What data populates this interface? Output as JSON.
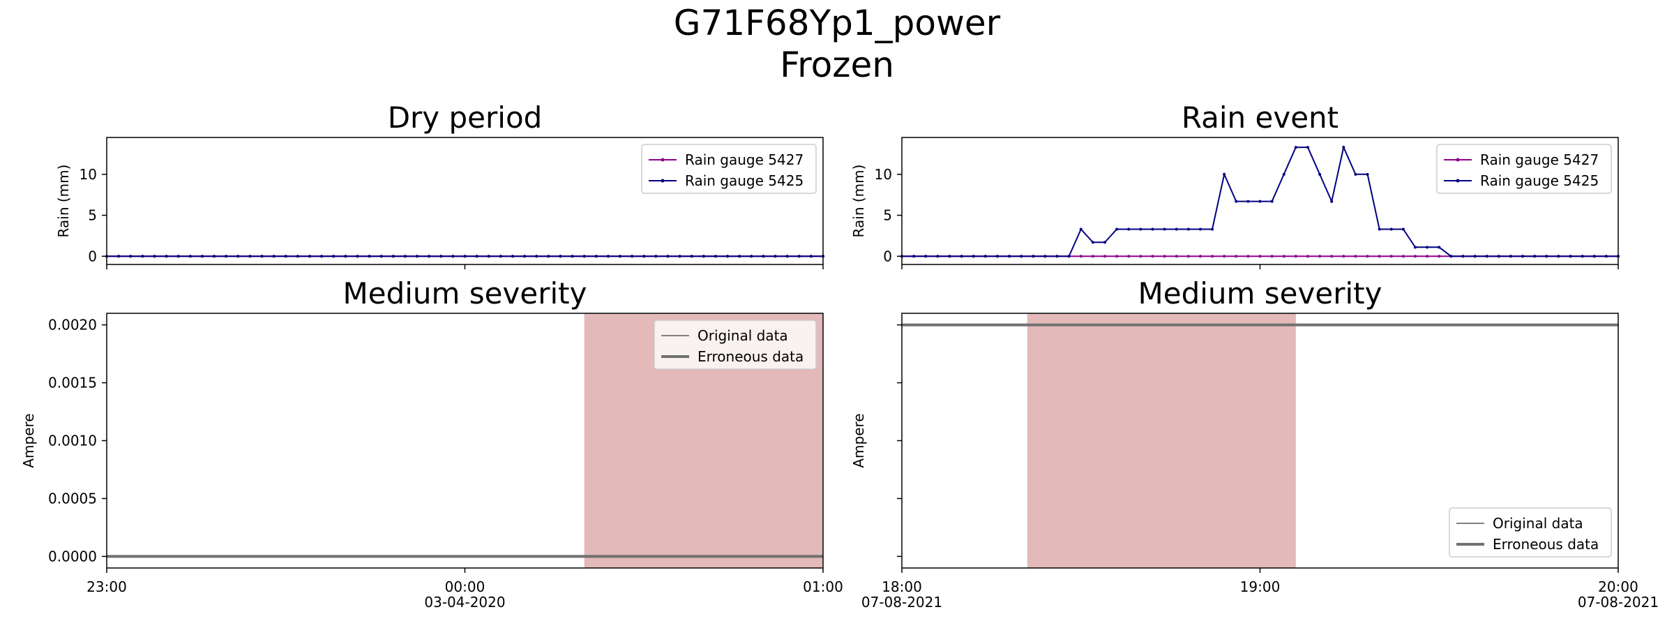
{
  "figure": {
    "title_line1": "G71F68Yp1_power",
    "title_line2": "Frozen"
  },
  "colors": {
    "gauge_5427": "#8b008b",
    "gauge_5425": "#000080",
    "original": "#808080",
    "erroneous": "#707070",
    "severity_span": "#e3b9ba"
  },
  "chart_data": [
    {
      "type": "line",
      "title": "Dry period",
      "ylabel": "Rain (mm)",
      "xlim": [
        "2020-04-02 23:00",
        "2020-04-03 01:00"
      ],
      "ylim": [
        -1,
        14.5
      ],
      "yticks": [
        0,
        5,
        10
      ],
      "x_tick_labels": [
        "23:00",
        "00:00\n03-04-2020",
        "01:00"
      ],
      "step_minutes": 2,
      "legend": "top-right",
      "grid": false,
      "series": [
        {
          "name": "Rain gauge 5427",
          "values_all": 0
        },
        {
          "name": "Rain gauge 5425",
          "values_all": 0
        }
      ]
    },
    {
      "type": "line",
      "title": "Rain event",
      "ylabel": "Rain (mm)",
      "xlim": [
        "2021-08-07 18:00",
        "2021-08-07 20:00"
      ],
      "ylim": [
        -1,
        14.5
      ],
      "yticks": [
        0,
        5,
        10
      ],
      "x_tick_labels": [
        "18:00\n07-08-2021",
        "19:00",
        "20:00\n07-08-2021"
      ],
      "step_minutes": 2,
      "legend": "top-right",
      "grid": false,
      "series": [
        {
          "name": "Rain gauge 5427",
          "values_all": 0
        },
        {
          "name": "Rain gauge 5425",
          "values": [
            0,
            0,
            0,
            0,
            0,
            0,
            0,
            0,
            0,
            0,
            0,
            0,
            0,
            0,
            0,
            3.3,
            1.7,
            1.7,
            3.3,
            3.3,
            3.3,
            3.3,
            3.3,
            3.3,
            3.3,
            3.3,
            3.3,
            10,
            6.7,
            6.7,
            6.7,
            6.7,
            10,
            13.3,
            13.3,
            10,
            6.7,
            13.3,
            10,
            10,
            3.3,
            3.3,
            3.3,
            1.1,
            1.1,
            1.1,
            0,
            0,
            0,
            0,
            0,
            0,
            0,
            0,
            0,
            0,
            0,
            0,
            0,
            0,
            0,
            0,
            0,
            0,
            0,
            0,
            0,
            0,
            0,
            0,
            0,
            0,
            0,
            0,
            0,
            0,
            0,
            0,
            0,
            0,
            0,
            0,
            0,
            0,
            0,
            0,
            0,
            0,
            0,
            0,
            0,
            0,
            0,
            0,
            0,
            0,
            0,
            0,
            0,
            0,
            0,
            0,
            0,
            0,
            0,
            0,
            0,
            0,
            0,
            0,
            0,
            0,
            0,
            0,
            0,
            0,
            0,
            0,
            0,
            0,
            0
          ]
        }
      ]
    },
    {
      "type": "line",
      "title": "Medium severity",
      "ylabel": "Ampere",
      "xlim": [
        "2020-04-02 23:00",
        "2020-04-03 01:00"
      ],
      "ylim": [
        -0.0001,
        0.0021
      ],
      "yticks": [
        "0.0000",
        "0.0005",
        "0.0010",
        "0.0015",
        "0.0020"
      ],
      "x_tick_labels": [
        "23:00",
        "00:00\n03-04-2020",
        "01:00"
      ],
      "legend": "top-right",
      "grid": false,
      "severity_span": [
        "2020-04-03 00:20",
        "2020-04-03 01:00"
      ],
      "series": [
        {
          "name": "Original data",
          "value_constant": 0
        },
        {
          "name": "Erroneous data",
          "value_constant": 0
        }
      ]
    },
    {
      "type": "line",
      "title": "Medium severity",
      "ylabel": "Ampere",
      "xlim": [
        "2021-08-07 18:00",
        "2021-08-07 20:00"
      ],
      "ylim": [
        -0.0001,
        0.0021
      ],
      "x_tick_labels": [
        "18:00\n07-08-2021",
        "19:00",
        "20:00\n07-08-2021"
      ],
      "legend": "bottom-right",
      "grid": false,
      "severity_span": [
        "2021-08-07 18:21",
        "2021-08-07 19:06"
      ],
      "series": [
        {
          "name": "Original data",
          "value_constant": 0.002
        },
        {
          "name": "Erroneous data",
          "value_constant": 0.002
        }
      ]
    }
  ]
}
